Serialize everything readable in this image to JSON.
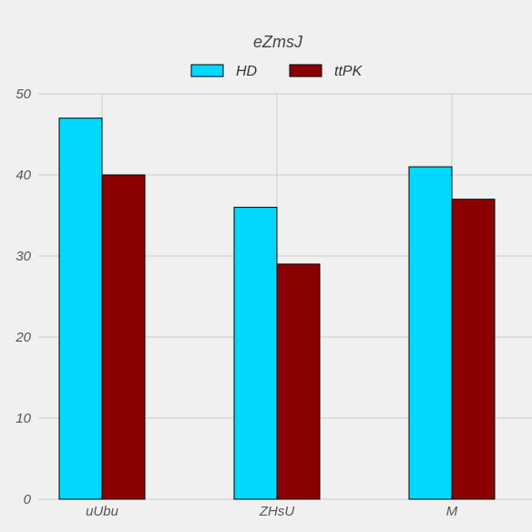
{
  "chart_data": {
    "type": "bar",
    "title": "eZmsJ",
    "xlabel": "",
    "ylabel": "",
    "categories": [
      "uUbu",
      "ZHsU",
      "M"
    ],
    "series": [
      {
        "name": "HD",
        "values": [
          47,
          36,
          41
        ],
        "color": "#00d8ff"
      },
      {
        "name": "ttPK",
        "values": [
          40,
          29,
          37
        ],
        "color": "#8b0000"
      }
    ],
    "ylim": [
      0,
      50
    ],
    "yticks": [
      0,
      10,
      20,
      30,
      40,
      50
    ],
    "grid": true,
    "legend_position": "top-center"
  }
}
